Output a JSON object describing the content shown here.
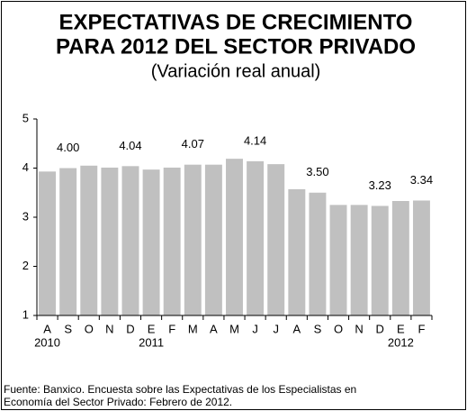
{
  "chart_data": {
    "type": "bar",
    "title": [
      "EXPECTATIVAS DE CRECIMIENTO",
      "PARA 2012 DEL SECTOR PRIVADO"
    ],
    "subtitle": "(Variación real anual)",
    "categories": [
      "A",
      "S",
      "O",
      "N",
      "D",
      "E",
      "F",
      "M",
      "A",
      "M",
      "J",
      "J",
      "A",
      "S",
      "O",
      "N",
      "D",
      "E",
      "F"
    ],
    "years": [
      "2010",
      null,
      null,
      null,
      null,
      "2011",
      null,
      null,
      null,
      null,
      null,
      null,
      null,
      null,
      null,
      null,
      null,
      "2012",
      null
    ],
    "values": [
      3.93,
      4.0,
      4.05,
      4.01,
      4.04,
      3.97,
      4.01,
      4.07,
      4.07,
      4.19,
      4.14,
      4.08,
      3.57,
      3.5,
      3.25,
      3.25,
      3.23,
      3.33,
      3.34
    ],
    "value_labels": [
      null,
      "4.00",
      null,
      null,
      "4.04",
      null,
      null,
      "4.07",
      null,
      null,
      "4.14",
      null,
      null,
      "3.50",
      null,
      null,
      "3.23",
      null,
      "3.34"
    ],
    "color": "#c0c0c0",
    "ylim": [
      1,
      5
    ],
    "yticks": [
      1,
      2,
      3,
      4,
      5
    ],
    "source": [
      "Fuente: Banxico. Encuesta sobre las Expectativas de los Especialistas en",
      "Economía del Sector Privado: Febrero de 2012."
    ]
  }
}
